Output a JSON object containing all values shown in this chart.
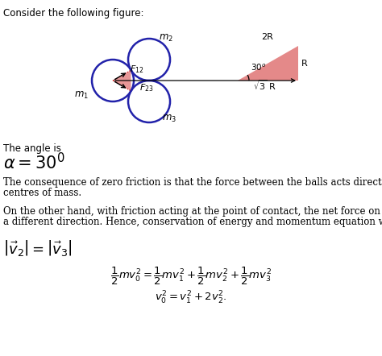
{
  "title_text": "Consider the following figure:",
  "angle_label": "The angle is",
  "consequence_text1": "The consequence of zero friction is that the force between the balls acts directly between the",
  "consequence_text2": "centres of mass.",
  "otherhand_text1": "On the other hand, with friction acting at the point of contact, the net force on the ball would be in",
  "otherhand_text2": "a different direction. Hence, conservation of energy and momentum equation would be:",
  "ball_color": "#2222aa",
  "triangle_fill": "#e07575",
  "bg_color": "#ffffff"
}
